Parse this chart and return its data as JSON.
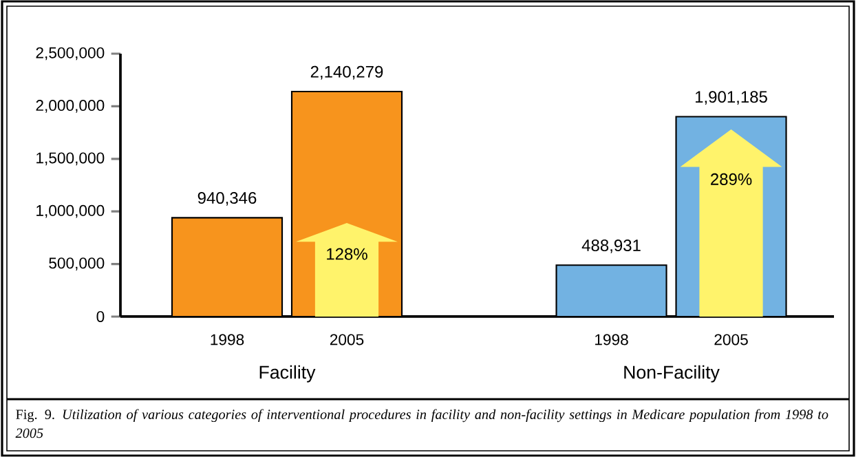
{
  "chart_data": {
    "type": "bar",
    "categories": [
      "1998",
      "2005",
      "1998",
      "2005"
    ],
    "values": [
      940346,
      2140279,
      488931,
      1901185
    ],
    "colors": [
      "#f7941d",
      "#f7941d",
      "#72b2e2",
      "#72b2e2"
    ],
    "value_labels": [
      "940,346",
      "2,140,279",
      "488,931",
      "1,901,185"
    ],
    "ylim": [
      0,
      2500000
    ],
    "yticks": [
      0,
      {
        "value": 500000,
        "label": "500,000"
      },
      {
        "value": 1000000,
        "label": "1,000,000"
      },
      {
        "value": 1500000,
        "label": "1,500,000"
      },
      {
        "value": 2000000,
        "label": "2,000,000"
      },
      {
        "value": 2500000,
        "label": "2,500,000"
      }
    ],
    "grid": false,
    "annotations": [
      "Facility",
      "Non-Facility",
      "128%",
      "289%",
      "Fig. 9. *Utilization of various categories of interventional procedures in facility and non-facility settings in Medicare population from 1998 to 2005*"
    ]
  }
}
